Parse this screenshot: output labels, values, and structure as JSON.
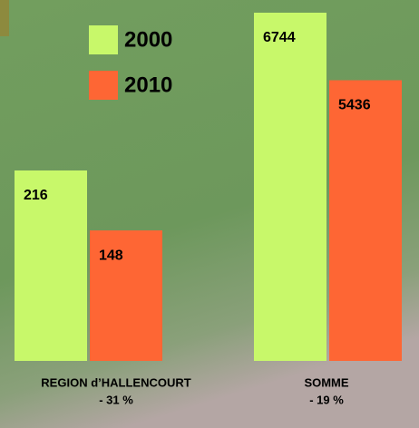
{
  "chart_data": {
    "type": "bar",
    "categories": [
      "REGION d’HALLENCOURT",
      "SOMME"
    ],
    "category_notes": [
      "- 31 %",
      "- 19 %"
    ],
    "series": [
      {
        "name": "2000",
        "color": "#c8f86a",
        "values": [
          216,
          6744
        ]
      },
      {
        "name": "2010",
        "color": "#fe6634",
        "values": [
          148,
          5436
        ]
      }
    ]
  }
}
